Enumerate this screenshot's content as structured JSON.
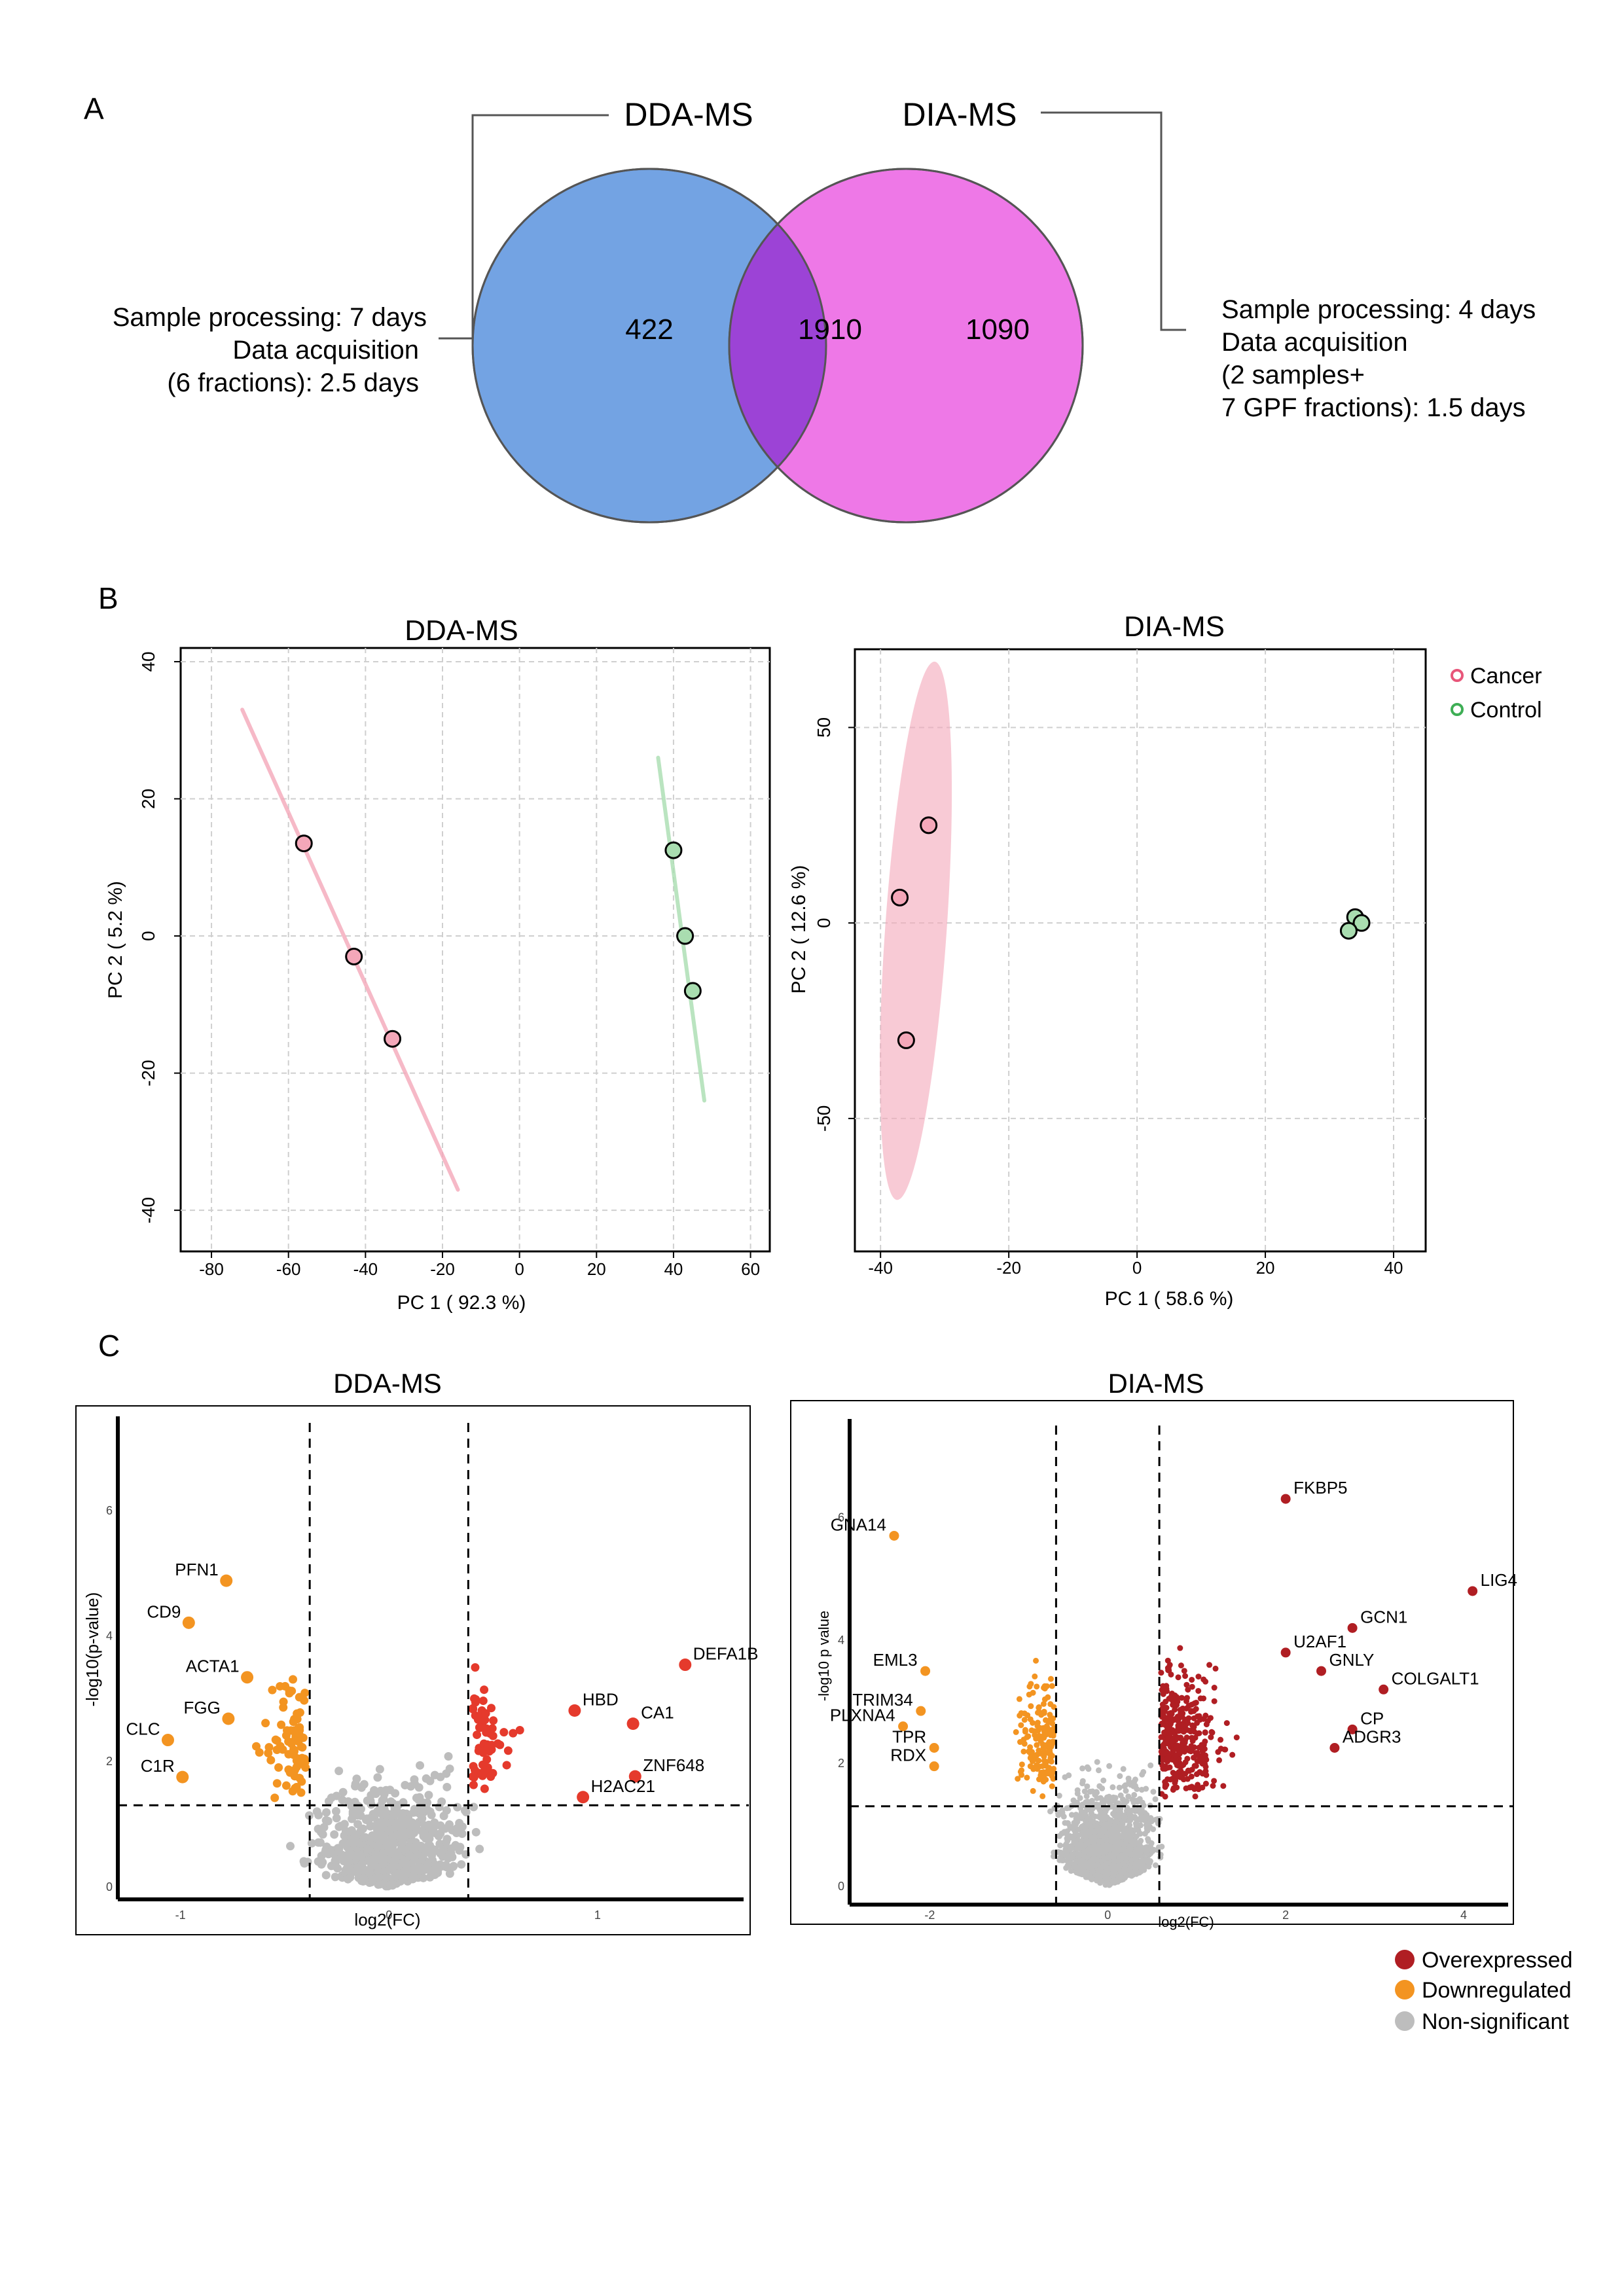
{
  "panel_labels": {
    "a": "A",
    "b": "B",
    "c": "C"
  },
  "colors": {
    "venn_left": "#5b93de",
    "venn_right": "#ec65e4",
    "venn_overlap": "#9c43d6",
    "cancer": "#f4a7b9",
    "cancer_edge": "#e8567a",
    "control": "#a9ddb0",
    "control_edge": "#3eae55",
    "overexpressed_dda": "#e53a2c",
    "overexpressed_dia": "#b01e23",
    "downregulated": "#f39421",
    "non_significant": "#bdbdbd"
  },
  "venn": {
    "left_title": "DDA-MS",
    "right_title": "DIA-MS",
    "left_only": "422",
    "overlap": "1910",
    "right_only": "1090",
    "left_note": [
      "Sample processing: 7 days",
      "Data acquisition",
      "(6 fractions): 2.5 days"
    ],
    "right_note": [
      "Sample processing: 4 days",
      "Data acquisition",
      "(2 samples+",
      "7 GPF fractions): 1.5 days"
    ]
  },
  "legend_b": {
    "items": [
      "Cancer",
      "Control"
    ]
  },
  "legend_c": {
    "items": [
      "Overexpressed",
      "Downregulated",
      "Non-significant"
    ]
  },
  "chart_data": [
    {
      "type": "scatter",
      "panel": "B",
      "title": "DDA-MS",
      "xlabel": "PC 1 ( 92.3 %)",
      "ylabel": "PC 2 ( 5.2 %)",
      "xlim": [
        -88,
        65
      ],
      "ylim": [
        -46,
        42
      ],
      "xticks": [
        "-80",
        "-60",
        "-40",
        "-20",
        "0",
        "20",
        "40",
        "60"
      ],
      "xtick_values": [
        -80,
        -60,
        -40,
        -20,
        0,
        20,
        40,
        60
      ],
      "yticks": [
        "40",
        "20",
        "0",
        "-20",
        "-40"
      ],
      "ytick_values": [
        40,
        20,
        0,
        -20,
        -40
      ],
      "grid": true,
      "series": [
        {
          "name": "Cancer",
          "points": [
            [
              -56,
              13.5
            ],
            [
              -43,
              -3
            ],
            [
              -33,
              -15
            ]
          ]
        },
        {
          "name": "Control",
          "points": [
            [
              40,
              12.5
            ],
            [
              43,
              0
            ],
            [
              45,
              -8
            ]
          ]
        }
      ],
      "ellipses": [
        {
          "series": "Cancer",
          "from": [
            -72,
            33
          ],
          "to": [
            -16,
            -37
          ]
        },
        {
          "series": "Control",
          "from": [
            36,
            26
          ],
          "to": [
            48,
            -24
          ]
        }
      ]
    },
    {
      "type": "scatter",
      "panel": "B",
      "title": "DIA-MS",
      "xlabel": "PC 1 ( 58.6 %)",
      "ylabel": "PC 2 ( 12.6 %)",
      "xlim": [
        -44,
        45
      ],
      "ylim": [
        -84,
        70
      ],
      "xticks": [
        "-40",
        "-20",
        "0",
        "20",
        "40"
      ],
      "xtick_values": [
        -40,
        -20,
        0,
        20,
        40
      ],
      "yticks": [
        "50",
        "0",
        "-50"
      ],
      "ytick_values": [
        50,
        0,
        -50
      ],
      "grid": true,
      "series": [
        {
          "name": "Cancer",
          "points": [
            [
              -32.5,
              25
            ],
            [
              -37,
              6.5
            ],
            [
              -36,
              -30
            ]
          ]
        },
        {
          "name": "Control",
          "points": [
            [
              34,
              1.5
            ],
            [
              35,
              0
            ],
            [
              33,
              -2
            ]
          ]
        }
      ],
      "ellipses": [
        {
          "series": "Cancer",
          "center": [
            -34.5,
            -2
          ],
          "rx": 4.8,
          "ry": 69
        }
      ]
    },
    {
      "type": "scatter",
      "panel": "C",
      "title": "DDA-MS",
      "xlabel": "log2(FC)",
      "ylabel": "-log10(p-value)",
      "xlim": [
        -1.3,
        1.7
      ],
      "ylim": [
        -0.2,
        7.5
      ],
      "xticks": [
        "-1",
        "0",
        "1"
      ],
      "xtick_values": [
        -1,
        0,
        1
      ],
      "yticks": [
        "0",
        "2",
        "4",
        "6"
      ],
      "ytick_values": [
        0,
        2,
        4,
        6
      ],
      "fc_thresholds": [
        -0.38,
        0.38
      ],
      "p_threshold": 1.3,
      "labels": [
        {
          "text": "PFN1",
          "x": -0.78,
          "y": 4.88
        },
        {
          "text": "CD9",
          "x": -0.96,
          "y": 4.21
        },
        {
          "text": "ACTA1",
          "x": -0.68,
          "y": 3.34
        },
        {
          "text": "FGG",
          "x": -0.77,
          "y": 2.68
        },
        {
          "text": "CLC",
          "x": -1.06,
          "y": 2.34
        },
        {
          "text": "C1R",
          "x": -0.99,
          "y": 1.75
        },
        {
          "text": "DEFA1B",
          "x": 1.42,
          "y": 3.54
        },
        {
          "text": "HBD",
          "x": 0.89,
          "y": 2.81
        },
        {
          "text": "CA1",
          "x": 1.17,
          "y": 2.6
        },
        {
          "text": "ZNF648",
          "x": 1.18,
          "y": 1.76
        },
        {
          "text": "H2AC21",
          "x": 0.93,
          "y": 1.43
        }
      ]
    },
    {
      "type": "scatter",
      "panel": "C",
      "title": "DIA-MS",
      "xlabel": "log2(FC)",
      "ylabel": "-log10 p value",
      "xlim": [
        -2.9,
        4.5
      ],
      "ylim": [
        -0.3,
        7.6
      ],
      "xticks": [
        "-2",
        "0",
        "2",
        "4"
      ],
      "xtick_values": [
        -2,
        0,
        2,
        4
      ],
      "yticks": [
        "0",
        "2",
        "4",
        "6"
      ],
      "ytick_values": [
        0,
        2,
        4,
        6
      ],
      "fc_thresholds": [
        -0.58,
        0.58
      ],
      "p_threshold": 1.3,
      "labels": [
        {
          "text": "FKBP5",
          "x": 2.0,
          "y": 6.3
        },
        {
          "text": "GNA14",
          "x": -2.4,
          "y": 5.7
        },
        {
          "text": "LIG4",
          "x": 4.1,
          "y": 4.8
        },
        {
          "text": "GCN1",
          "x": 2.75,
          "y": 4.2
        },
        {
          "text": "U2AF1",
          "x": 2.0,
          "y": 3.8
        },
        {
          "text": "GNLY",
          "x": 2.4,
          "y": 3.5
        },
        {
          "text": "COLGALT1",
          "x": 3.1,
          "y": 3.2
        },
        {
          "text": "EML3",
          "x": -2.05,
          "y": 3.5
        },
        {
          "text": "TRIM34",
          "x": -2.1,
          "y": 2.85
        },
        {
          "text": "PLXNA4",
          "x": -2.3,
          "y": 2.6
        },
        {
          "text": "TPR",
          "x": -1.95,
          "y": 2.25
        },
        {
          "text": "RDX",
          "x": -1.95,
          "y": 1.95
        },
        {
          "text": "CP",
          "x": 2.75,
          "y": 2.55
        },
        {
          "text": "ADGR3",
          "x": 2.55,
          "y": 2.25
        }
      ]
    }
  ]
}
